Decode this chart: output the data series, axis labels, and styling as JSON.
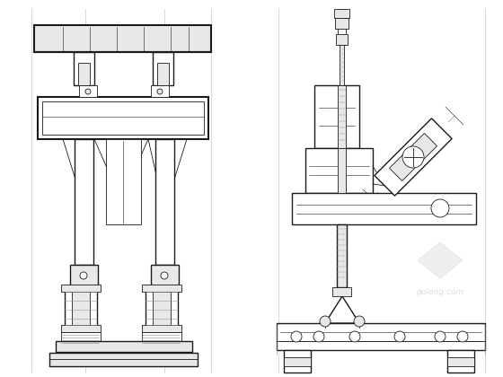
{
  "bg": "#ffffff",
  "lc": "#1a1a1a",
  "gc": "#888888",
  "lgc": "#cccccc",
  "mgc": "#aaaaaa",
  "figsize": [
    5.6,
    4.2
  ],
  "dpi": 100,
  "white": "#ffffff",
  "near_white": "#f0f0f0",
  "light_fill": "#e8e8e8",
  "med_fill": "#d0d0d0",
  "dark_fill": "#b0b0b0"
}
